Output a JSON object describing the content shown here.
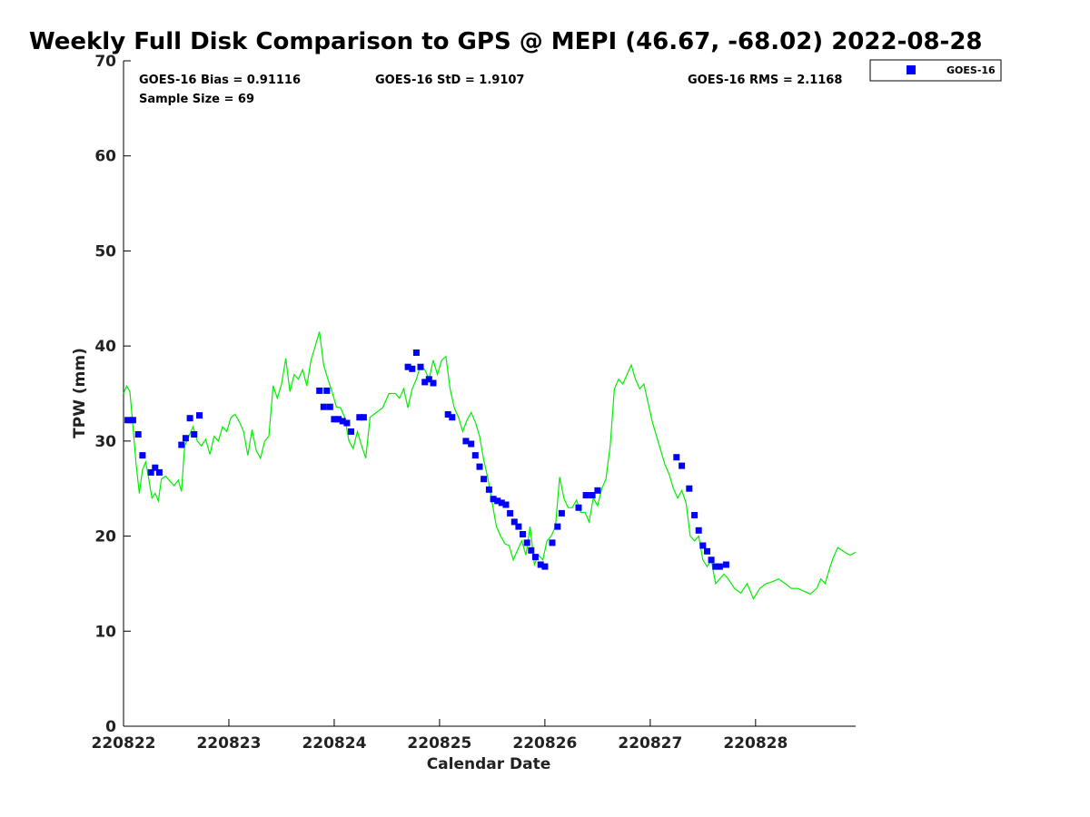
{
  "chart_data": {
    "type": "scatter",
    "title": "Weekly Full Disk Comparison to GPS @ MEPI (46.67, -68.02) 2022-08-28",
    "xlabel": "Calendar Date",
    "ylabel": "TPW (mm)",
    "xlim": [
      0,
      6.95
    ],
    "ylim": [
      0,
      70
    ],
    "x_tick_labels": [
      "220822",
      "220823",
      "220824",
      "220825",
      "220826",
      "220827",
      "220828"
    ],
    "y_ticks": [
      0,
      10,
      20,
      30,
      40,
      50,
      60,
      70
    ],
    "grid": false,
    "legend_position": "top-right-outside",
    "stats": {
      "bias": "GOES-16 Bias = 0.91116",
      "std": "GOES-16 StD = 1.9107",
      "rms": "GOES-16 RMS = 2.1168",
      "sample": "Sample Size = 69"
    },
    "series": [
      {
        "name": "GOES-16",
        "kind": "markers",
        "color": "#0000ff",
        "x": [
          0.04,
          0.09,
          0.14,
          0.18,
          0.26,
          0.3,
          0.34,
          0.55,
          0.59,
          0.63,
          0.67,
          0.72,
          1.86,
          1.9,
          1.93,
          1.96,
          2.0,
          2.04,
          2.08,
          2.12,
          2.16,
          2.24,
          2.28,
          2.7,
          2.74,
          2.78,
          2.82,
          2.86,
          2.9,
          2.94,
          3.08,
          3.12,
          3.25,
          3.3,
          3.34,
          3.38,
          3.42,
          3.47,
          3.51,
          3.55,
          3.59,
          3.63,
          3.67,
          3.71,
          3.75,
          3.79,
          3.83,
          3.87,
          3.91,
          3.96,
          4.0,
          4.07,
          4.12,
          4.16,
          4.32,
          4.39,
          4.45,
          4.5,
          5.25,
          5.3,
          5.37,
          5.42,
          5.46,
          5.5,
          5.54,
          5.58,
          5.62,
          5.66,
          5.72
        ],
        "y": [
          32.2,
          32.2,
          30.7,
          28.5,
          26.7,
          27.2,
          26.7,
          29.6,
          30.3,
          32.4,
          30.7,
          32.7,
          35.3,
          33.6,
          35.3,
          33.6,
          32.3,
          32.3,
          32.1,
          31.9,
          31.0,
          32.5,
          32.5,
          37.8,
          37.6,
          39.3,
          37.8,
          36.2,
          36.5,
          36.1,
          32.8,
          32.5,
          30.0,
          29.7,
          28.5,
          27.3,
          26.0,
          24.9,
          23.9,
          23.7,
          23.5,
          23.3,
          22.4,
          21.5,
          21.0,
          20.2,
          19.3,
          18.5,
          17.8,
          17.0,
          16.8,
          19.3,
          21.0,
          22.4,
          23.0,
          24.3,
          24.3,
          24.8,
          28.3,
          27.4,
          25.0,
          22.2,
          20.6,
          19.0,
          18.4,
          17.5,
          16.8,
          16.8,
          17.0
        ]
      },
      {
        "name": "",
        "kind": "line",
        "color": "#00ee00",
        "x": [
          0.0,
          0.03,
          0.06,
          0.09,
          0.12,
          0.15,
          0.18,
          0.21,
          0.24,
          0.27,
          0.3,
          0.33,
          0.36,
          0.4,
          0.44,
          0.48,
          0.52,
          0.55,
          0.58,
          0.62,
          0.66,
          0.7,
          0.74,
          0.78,
          0.82,
          0.86,
          0.9,
          0.94,
          0.98,
          1.02,
          1.06,
          1.1,
          1.14,
          1.18,
          1.22,
          1.26,
          1.3,
          1.34,
          1.38,
          1.42,
          1.46,
          1.5,
          1.54,
          1.58,
          1.62,
          1.66,
          1.7,
          1.74,
          1.78,
          1.82,
          1.86,
          1.9,
          1.94,
          1.98,
          2.02,
          2.06,
          2.1,
          2.14,
          2.18,
          2.22,
          2.26,
          2.3,
          2.34,
          2.4,
          2.46,
          2.52,
          2.58,
          2.62,
          2.66,
          2.7,
          2.74,
          2.78,
          2.82,
          2.86,
          2.9,
          2.94,
          2.98,
          3.02,
          3.06,
          3.1,
          3.14,
          3.18,
          3.22,
          3.26,
          3.3,
          3.34,
          3.38,
          3.42,
          3.46,
          3.5,
          3.54,
          3.58,
          3.62,
          3.66,
          3.7,
          3.74,
          3.78,
          3.82,
          3.86,
          3.9,
          3.94,
          3.98,
          4.02,
          4.06,
          4.1,
          4.14,
          4.18,
          4.22,
          4.26,
          4.3,
          4.34,
          4.38,
          4.42,
          4.46,
          4.5,
          4.54,
          4.58,
          4.62,
          4.66,
          4.7,
          4.74,
          4.78,
          4.82,
          4.86,
          4.9,
          4.94,
          4.98,
          5.02,
          5.06,
          5.1,
          5.14,
          5.18,
          5.22,
          5.26,
          5.3,
          5.34,
          5.38,
          5.42,
          5.46,
          5.5,
          5.54,
          5.58,
          5.62,
          5.66,
          5.7,
          5.74,
          5.8,
          5.86,
          5.92,
          5.98,
          6.04,
          6.1,
          6.16,
          6.22,
          6.28,
          6.34,
          6.4,
          6.46,
          6.52,
          6.58,
          6.62,
          6.66,
          6.7,
          6.74,
          6.78,
          6.82,
          6.86,
          6.9,
          6.95
        ],
        "y": [
          35.0,
          35.8,
          35.2,
          31.5,
          27.5,
          24.5,
          27.0,
          27.8,
          26.0,
          24.0,
          24.5,
          23.7,
          26.0,
          26.3,
          25.8,
          25.3,
          25.9,
          24.7,
          29.5,
          30.5,
          31.5,
          30.0,
          29.5,
          30.2,
          28.6,
          30.5,
          30.0,
          31.5,
          31.0,
          32.5,
          32.8,
          32.0,
          31.0,
          28.5,
          31.2,
          29.0,
          28.2,
          30.0,
          30.5,
          35.8,
          34.5,
          36.0,
          38.7,
          35.2,
          37.0,
          36.5,
          37.5,
          35.8,
          38.5,
          40.0,
          41.5,
          38.0,
          36.5,
          35.2,
          33.6,
          33.5,
          32.5,
          30.0,
          29.2,
          31.0,
          29.5,
          28.2,
          32.5,
          33.0,
          33.5,
          35.0,
          35.0,
          34.5,
          35.5,
          33.5,
          35.5,
          36.5,
          38.0,
          37.5,
          36.5,
          38.5,
          37.0,
          38.5,
          38.9,
          35.5,
          33.5,
          32.5,
          31.0,
          32.2,
          33.0,
          32.0,
          30.5,
          28.0,
          26.0,
          23.5,
          21.0,
          20.0,
          19.2,
          19.0,
          17.5,
          18.5,
          19.5,
          18.0,
          21.0,
          17.0,
          18.0,
          17.5,
          19.5,
          20.0,
          21.0,
          26.2,
          24.0,
          23.0,
          23.0,
          23.8,
          22.5,
          22.5,
          21.5,
          24.0,
          23.2,
          25.0,
          26.0,
          29.5,
          35.5,
          36.5,
          36.0,
          37.0,
          38.0,
          36.5,
          35.5,
          36.0,
          34.0,
          32.0,
          30.5,
          29.0,
          27.5,
          26.5,
          25.0,
          24.0,
          24.8,
          23.5,
          20.0,
          19.5,
          20.0,
          17.5,
          16.8,
          17.5,
          15.0,
          15.5,
          16.0,
          15.5,
          14.5,
          14.0,
          15.0,
          13.4,
          14.5,
          15.0,
          15.2,
          15.5,
          15.0,
          14.5,
          14.5,
          14.2,
          13.9,
          14.5,
          15.5,
          15.0,
          16.5,
          17.8,
          18.8,
          18.5,
          18.2,
          18.0,
          18.3
        ]
      }
    ]
  }
}
